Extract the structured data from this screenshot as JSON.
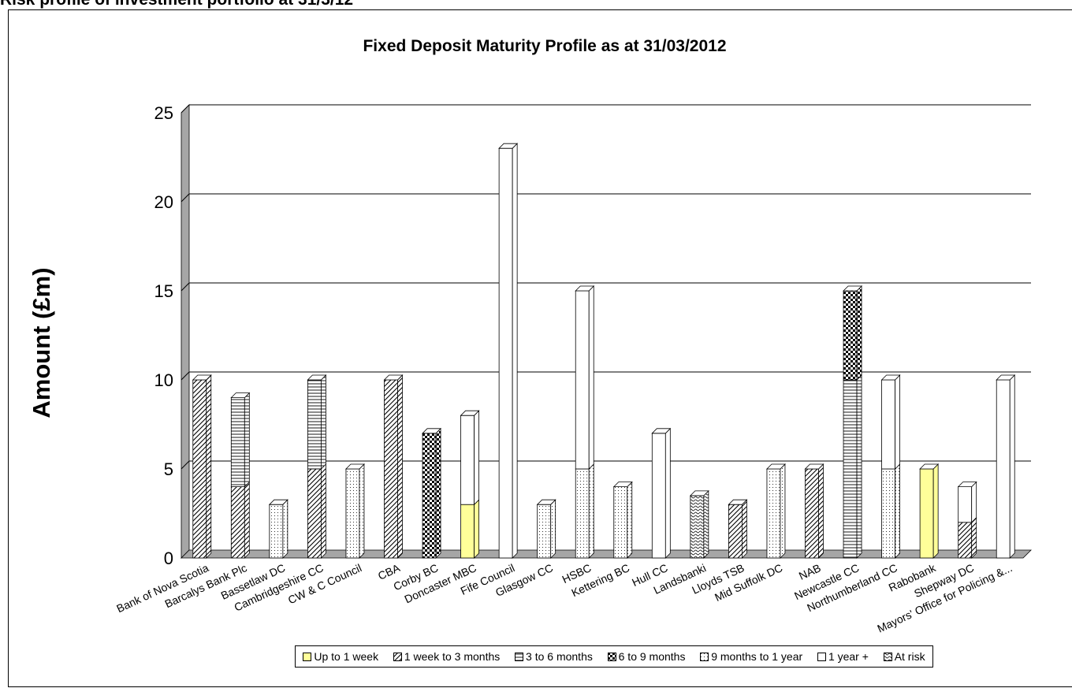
{
  "page_heading": "Risk profile of investment portfolio at 31/3/12",
  "chart_data": {
    "type": "bar",
    "stacked": true,
    "three_d": true,
    "title": "Fixed Deposit Maturity Profile as at 31/03/2012",
    "xlabel": "",
    "ylabel": "Amount (£m)",
    "ylim": [
      0,
      25
    ],
    "yticks": [
      "0",
      "5",
      "10",
      "15",
      "20",
      "25"
    ],
    "grid": true,
    "legend_position": "bottom",
    "categories": [
      "Bank of Nova Scotia",
      "Barcalys Bank Plc",
      "Bassetlaw DC",
      "Cambridgeshire CC",
      "CW & C Council",
      "CBA",
      "Corby BC",
      "Doncaster MBC",
      "Fife Council",
      "Glasgow CC",
      "HSBC",
      "Kettering BC",
      "Hull CC",
      "Landsbanki",
      "Lloyds TSB",
      "Mid Suffolk DC",
      "NAB",
      "Newcastle CC",
      "Northumberland CC",
      "Rabobank",
      "Shepway DC",
      "Mayors' Office for Policing &..."
    ],
    "series": [
      {
        "name": "Up to 1 week",
        "color": "#ffff99",
        "values": [
          0,
          0,
          0,
          0,
          0,
          0,
          0,
          3,
          0,
          0,
          0,
          0,
          0,
          0,
          0,
          0,
          0,
          0,
          0,
          5,
          0,
          0
        ]
      },
      {
        "name": "1 week to 3 months",
        "color": "#ffffff",
        "values": [
          10,
          4,
          0,
          5,
          0,
          10,
          0,
          0,
          0,
          0,
          0,
          0,
          0,
          0,
          3,
          0,
          5,
          0,
          0,
          0,
          2,
          0
        ]
      },
      {
        "name": "3 to 6 months",
        "color": "#ffffff",
        "values": [
          0,
          5,
          0,
          5,
          0,
          0,
          0,
          0,
          0,
          0,
          0,
          0,
          0,
          0,
          0,
          0,
          0,
          10,
          0,
          0,
          0,
          0
        ]
      },
      {
        "name": "6 to 9 months",
        "color": "#ffffff",
        "values": [
          0,
          0,
          0,
          0,
          0,
          0,
          7,
          0,
          0,
          0,
          0,
          0,
          0,
          0,
          0,
          0,
          0,
          5,
          0,
          0,
          0,
          0
        ]
      },
      {
        "name": "9 months to 1 year",
        "color": "#ffffff",
        "values": [
          0,
          0,
          3,
          0,
          5,
          0,
          0,
          0,
          0,
          3,
          5,
          4,
          0,
          0,
          0,
          5,
          0,
          0,
          5,
          0,
          0,
          0
        ]
      },
      {
        "name": "1 year +",
        "color": "#ffffff",
        "values": [
          0,
          0,
          0,
          0,
          0,
          0,
          0,
          5,
          23,
          0,
          10,
          0,
          7,
          0,
          0,
          0,
          0,
          0,
          5,
          0,
          2,
          10
        ]
      },
      {
        "name": "At risk",
        "color": "#ffffff",
        "values": [
          0,
          0,
          0,
          0,
          0,
          0,
          0,
          0,
          0,
          0,
          0,
          0,
          0,
          3.5,
          0,
          0,
          0,
          0,
          0,
          0,
          0,
          0
        ]
      }
    ]
  }
}
